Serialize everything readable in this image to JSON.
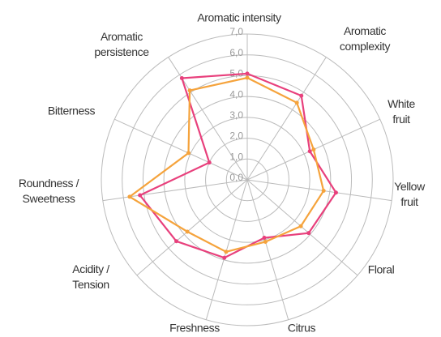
{
  "chart_data": {
    "type": "radar",
    "categories": [
      "Aromatic intensity",
      "Aromatic complexity",
      "White fruit",
      "Yellow fruit",
      "Floral",
      "Citrus",
      "Freshness",
      "Acidity / Tension",
      "Roundness / Sweetness",
      "Bitterness",
      "Aromatic persistence"
    ],
    "series": [
      {
        "color": "#e8407c",
        "values": [
          5.1,
          4.8,
          3.3,
          4.3,
          3.9,
          2.9,
          3.9,
          4.5,
          5.2,
          2.0,
          5.8
        ]
      },
      {
        "color": "#f5a33c",
        "values": [
          4.9,
          4.4,
          3.5,
          3.7,
          3.4,
          3.1,
          3.6,
          3.8,
          5.7,
          3.1,
          5.1
        ]
      }
    ],
    "ylim": [
      0,
      7
    ],
    "yticks": [
      {
        "value": 0,
        "label": "0,0"
      },
      {
        "value": 1,
        "label": "1,0"
      },
      {
        "value": 2,
        "label": "2,0"
      },
      {
        "value": 3,
        "label": "3,0"
      },
      {
        "value": 4,
        "label": "4,0"
      },
      {
        "value": 5,
        "label": "5,0"
      },
      {
        "value": 6,
        "label": "6,0"
      },
      {
        "value": 7,
        "label": "7,0"
      }
    ],
    "grid": true
  }
}
